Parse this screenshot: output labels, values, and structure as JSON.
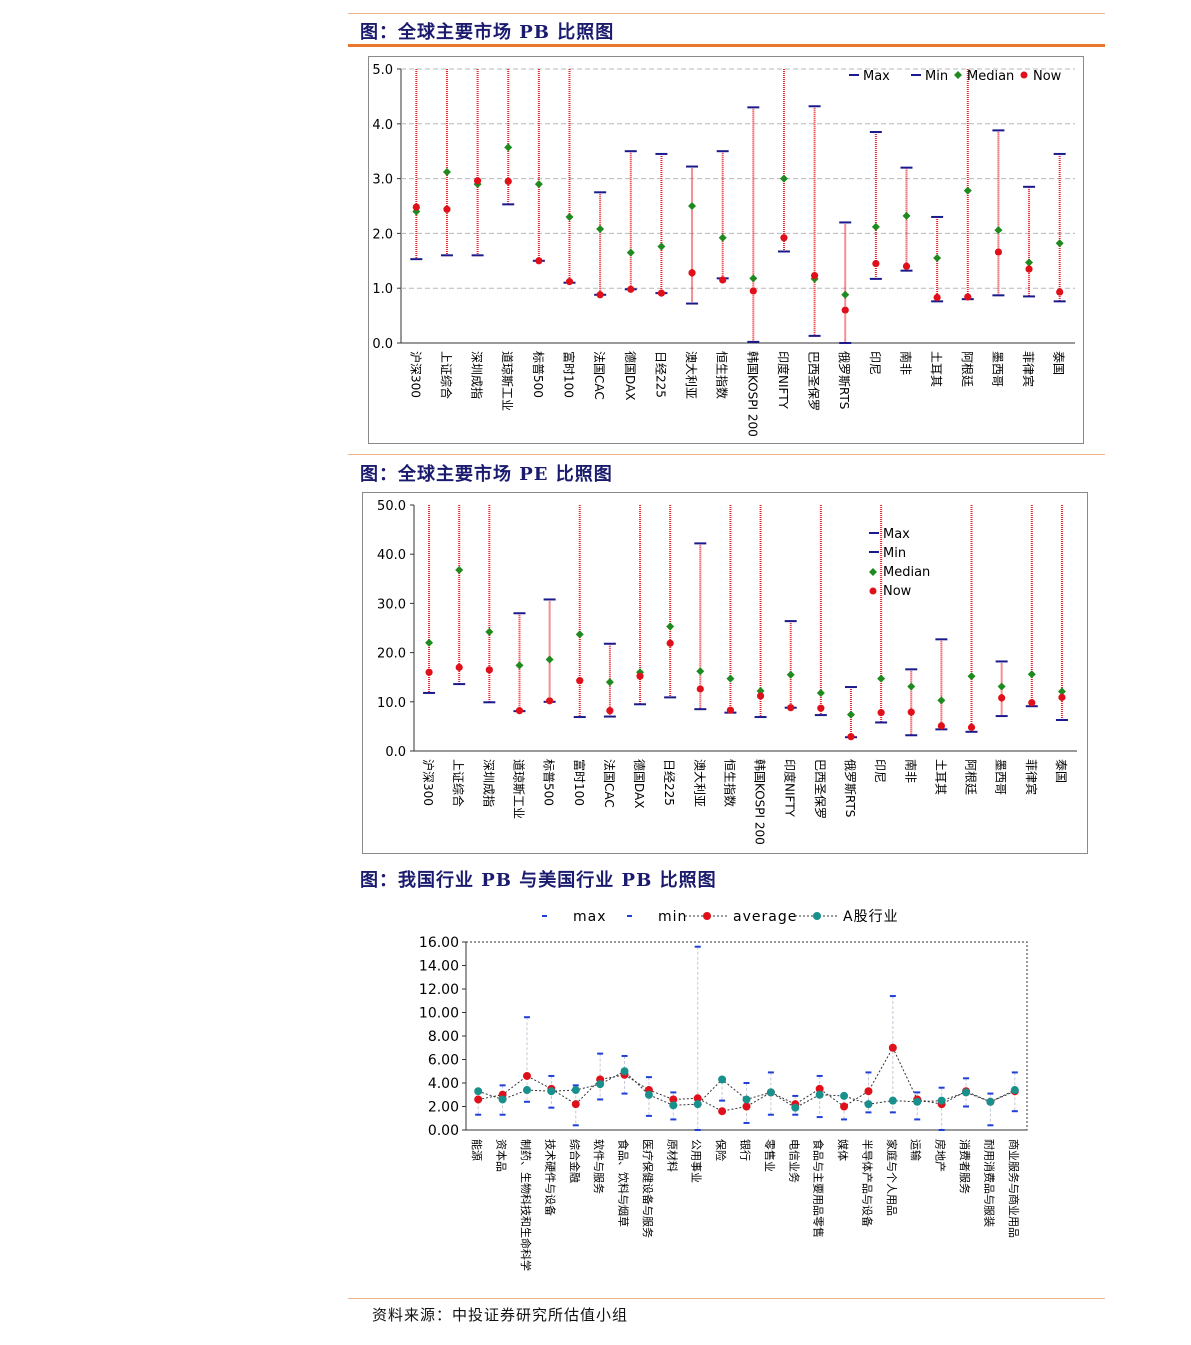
{
  "figures": {
    "pb_title": "图：全球主要市场 PB 比照图",
    "pe_title": "图：全球主要市场 PE 比照图",
    "ind_title": "图：我国行业 PB 与美国行业 PB 比照图",
    "source": "资料来源：中投证券研究所估值小组"
  },
  "colors": {
    "max": "#1a1a8c",
    "min": "#1a1a8c",
    "median": "#1f8a1f",
    "now": "#e0101a",
    "range": "#e8202a",
    "industry_a": "#18908c",
    "grid": "#b0b0b0"
  },
  "chart_data": [
    {
      "type": "scatter",
      "categories": [
        "沪深300",
        "上证综合",
        "深圳成指",
        "道琼斯工业",
        "标普500",
        "富时100",
        "法国CAC",
        "德国DAX",
        "日经225",
        "澳大利亚",
        "恒生指数",
        "韩国KOSPI 200",
        "印度NIFTY",
        "巴西圣保罗",
        "俄罗斯RTS",
        "印尼",
        "南非",
        "土耳其",
        "阿根廷",
        "墨西哥",
        "菲律宾",
        "泰国"
      ],
      "ylim": [
        0,
        5
      ],
      "yticks": [
        "0.0",
        "1.0",
        "2.0",
        "3.0",
        "4.0",
        "5.0"
      ],
      "legend": [
        "Max",
        "Min",
        "Median",
        "Now"
      ],
      "legend_position": "top-right",
      "grid": true,
      "series": [
        {
          "name": "Max",
          "values": [
            5.0,
            5.0,
            5.0,
            5.0,
            5.0,
            5.0,
            2.75,
            3.5,
            3.45,
            3.22,
            3.5,
            4.3,
            5.0,
            4.32,
            2.2,
            3.85,
            3.2,
            2.3,
            5.0,
            3.88,
            2.85,
            3.45
          ]
        },
        {
          "name": "Min",
          "values": [
            1.53,
            1.6,
            1.6,
            2.53,
            1.5,
            1.1,
            0.88,
            0.98,
            0.91,
            0.72,
            1.18,
            0.02,
            1.67,
            0.13,
            0.0,
            1.17,
            1.32,
            0.76,
            0.8,
            0.87,
            0.85,
            0.76
          ]
        },
        {
          "name": "Median",
          "values": [
            2.4,
            3.12,
            2.9,
            3.57,
            2.9,
            2.3,
            2.08,
            1.65,
            1.76,
            2.5,
            1.92,
            1.18,
            3.0,
            1.17,
            0.88,
            2.12,
            2.32,
            1.55,
            2.78,
            2.06,
            1.47,
            1.82
          ]
        },
        {
          "name": "Now",
          "values": [
            2.48,
            2.44,
            2.96,
            2.95,
            1.5,
            1.12,
            0.88,
            0.98,
            0.91,
            1.28,
            1.15,
            0.95,
            1.92,
            1.23,
            0.6,
            1.45,
            1.4,
            0.83,
            0.84,
            1.66,
            1.35,
            0.93
          ]
        }
      ]
    },
    {
      "type": "scatter",
      "categories": [
        "沪深300",
        "上证综合",
        "深圳成指",
        "道琼斯工业",
        "标普500",
        "富时100",
        "法国CAC",
        "德国DAX",
        "日经225",
        "澳大利亚",
        "恒生指数",
        "韩国KOSPI 200",
        "印度NIFTY",
        "巴西圣保罗",
        "俄罗斯RTS",
        "印尼",
        "南非",
        "土耳其",
        "阿根廷",
        "墨西哥",
        "菲律宾",
        "泰国"
      ],
      "ylim": [
        0,
        50
      ],
      "yticks": [
        "0.0",
        "10.0",
        "20.0",
        "30.0",
        "40.0",
        "50.0"
      ],
      "legend": [
        "Max",
        "Min",
        "Median",
        "Now"
      ],
      "legend_position": "top-right",
      "grid": false,
      "series": [
        {
          "name": "Max",
          "values": [
            50,
            50,
            50,
            28,
            30.8,
            50,
            21.8,
            50,
            50,
            42.2,
            50,
            50,
            26.4,
            50,
            13,
            50,
            16.6,
            22.7,
            50,
            18.2,
            50,
            50
          ]
        },
        {
          "name": "Min",
          "values": [
            11.8,
            13.6,
            9.9,
            8.1,
            10,
            6.9,
            7,
            9.5,
            10.9,
            8.5,
            7.8,
            6.9,
            8.8,
            7.3,
            2.8,
            5.8,
            3.2,
            4.4,
            3.9,
            7.1,
            9.1,
            6.3
          ]
        },
        {
          "name": "Median",
          "values": [
            22,
            36.8,
            24.2,
            17.4,
            18.6,
            23.7,
            14,
            16,
            25.3,
            16.2,
            14.7,
            12.2,
            15.5,
            11.8,
            7.4,
            14.7,
            13.1,
            10.3,
            15.2,
            13.1,
            15.6,
            12.1
          ]
        },
        {
          "name": "Now",
          "values": [
            16,
            17,
            16.5,
            8.2,
            10.2,
            14.3,
            8.2,
            15.2,
            21.9,
            12.6,
            8.3,
            11.2,
            8.8,
            8.7,
            2.9,
            7.8,
            7.9,
            5.1,
            4.8,
            10.8,
            9.8,
            10.9
          ]
        }
      ]
    },
    {
      "type": "line",
      "categories": [
        "能源",
        "资本品",
        "制药、生物科技和生命科学",
        "技术硬件与设备",
        "综合金融",
        "软件与服务",
        "食品、饮料与烟草",
        "医疗保健设备与服务",
        "原材料",
        "公用事业",
        "保险",
        "银行",
        "零售业",
        "电信业务",
        "食品与主要用品零售",
        "媒体",
        "半导体产品与设备",
        "家庭与个人用品",
        "运输",
        "房地产",
        "消费者服务",
        "耐用消费品与服装",
        "商业服务与商业用品"
      ],
      "ylim": [
        0,
        16
      ],
      "yticks": [
        "0.00",
        "2.00",
        "4.00",
        "6.00",
        "8.00",
        "10.00",
        "12.00",
        "14.00",
        "16.00"
      ],
      "legend": [
        "max",
        "min",
        "average",
        "A股行业"
      ],
      "legend_position": "top",
      "grid": false,
      "series": [
        {
          "name": "max",
          "values": [
            3.3,
            3.8,
            9.6,
            4.6,
            3.8,
            6.5,
            6.3,
            4.5,
            3.2,
            15.6,
            4.1,
            4.0,
            4.9,
            2.9,
            4.6,
            2.9,
            4.9,
            11.4,
            3.2,
            3.6,
            4.4,
            3.1,
            4.9
          ]
        },
        {
          "name": "min",
          "values": [
            1.3,
            1.3,
            2.4,
            1.9,
            0.4,
            2.6,
            3.1,
            1.2,
            0.9,
            0.0,
            2.5,
            0.6,
            1.3,
            1.3,
            1.1,
            0.9,
            1.5,
            1.5,
            0.9,
            0.0,
            2.0,
            0.4,
            1.6
          ]
        },
        {
          "name": "average",
          "values": [
            2.6,
            3.0,
            4.6,
            3.5,
            2.2,
            4.3,
            4.7,
            3.4,
            2.6,
            2.7,
            1.6,
            2.0,
            3.2,
            2.2,
            3.5,
            2.0,
            3.3,
            7.0,
            2.6,
            2.2,
            3.3,
            2.4,
            3.3
          ]
        },
        {
          "name": "A股行业",
          "values": [
            3.3,
            2.6,
            3.4,
            3.3,
            3.4,
            3.9,
            5.0,
            3.0,
            2.1,
            2.2,
            4.3,
            2.6,
            3.2,
            1.9,
            3.0,
            2.9,
            2.2,
            2.5,
            2.4,
            2.5,
            3.2,
            2.4,
            3.4
          ]
        }
      ]
    }
  ]
}
